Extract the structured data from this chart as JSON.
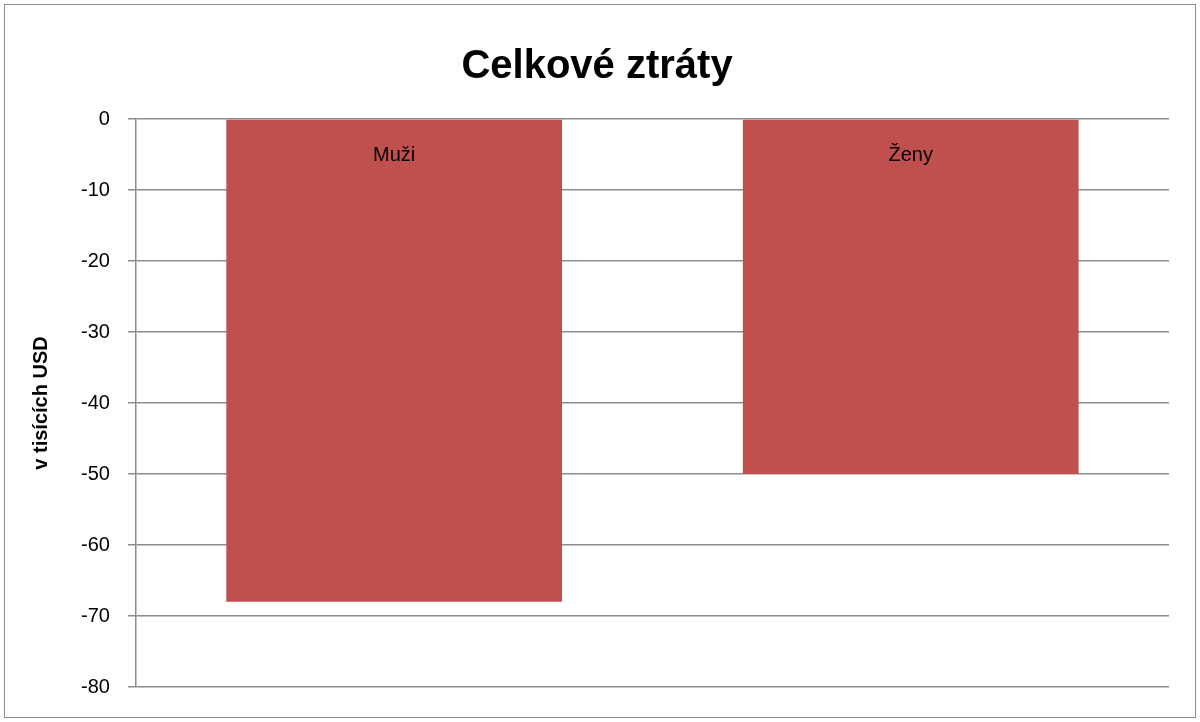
{
  "chart_data": {
    "type": "bar",
    "title": "Celkové ztráty",
    "ylabel": "v tisících USD",
    "categories": [
      "Muži",
      "Ženy"
    ],
    "values": [
      -68,
      -50
    ],
    "color": "#c0504d",
    "ylim": [
      -80,
      0
    ],
    "yticks": [
      -80,
      -70,
      -60,
      -50,
      -40,
      -30,
      -20,
      -10,
      0
    ],
    "grid": "y",
    "legend": false
  }
}
